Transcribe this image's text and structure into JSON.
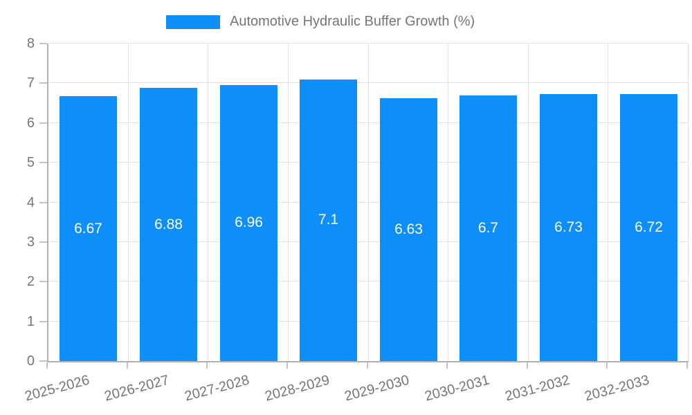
{
  "chart_data": {
    "type": "bar",
    "title": "Automotive Hydraulic Buffer Growth (%)",
    "categories": [
      "2025-2026",
      "2026-2027",
      "2027-2028",
      "2028-2029",
      "2029-2030",
      "2030-2031",
      "2031-2032",
      "2032-2033"
    ],
    "values": [
      6.67,
      6.88,
      6.96,
      7.1,
      6.63,
      6.7,
      6.73,
      6.72
    ],
    "value_labels": [
      "6.67",
      "6.88",
      "6.96",
      "7.1",
      "6.63",
      "6.7",
      "6.73",
      "6.72"
    ],
    "xlabel": "",
    "ylabel": "",
    "ylim": [
      0,
      8
    ],
    "yticks": [
      0,
      1,
      2,
      3,
      4,
      5,
      6,
      7,
      8
    ],
    "grid": true,
    "legend_position": "top",
    "colors": {
      "bar": "#0d8ef9",
      "value_label": "#ffffff",
      "axis_text": "#757575",
      "grid_line": "#e0e0e0",
      "axis_line": "#b0b0b0",
      "tick_mark": "#c2c2c2"
    }
  }
}
